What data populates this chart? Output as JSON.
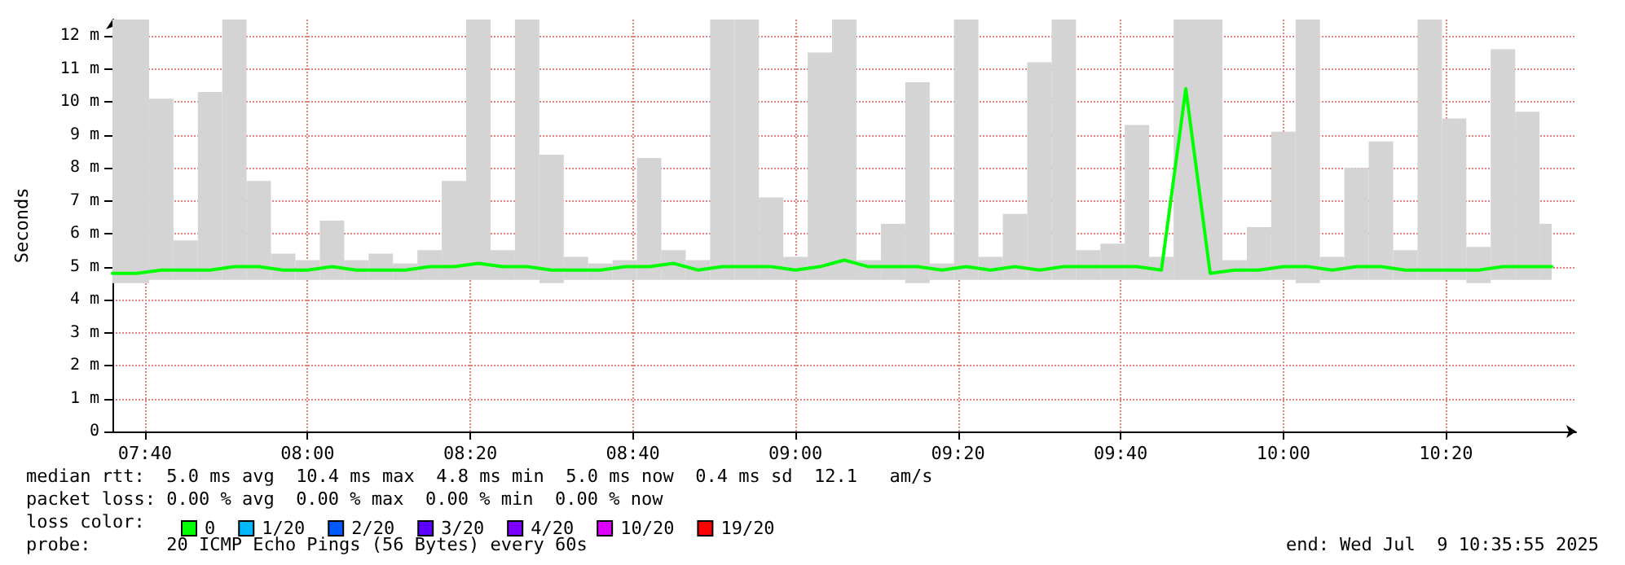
{
  "chart_data": {
    "type": "line",
    "ylabel": "Seconds",
    "x": [
      "2025-07-09T07:36",
      "2025-07-09T07:39",
      "2025-07-09T07:42",
      "2025-07-09T07:45",
      "2025-07-09T07:48",
      "2025-07-09T07:51",
      "2025-07-09T07:54",
      "2025-07-09T07:57",
      "2025-07-09T08:00",
      "2025-07-09T08:03",
      "2025-07-09T08:06",
      "2025-07-09T08:09",
      "2025-07-09T08:12",
      "2025-07-09T08:15",
      "2025-07-09T08:18",
      "2025-07-09T08:21",
      "2025-07-09T08:24",
      "2025-07-09T08:27",
      "2025-07-09T08:30",
      "2025-07-09T08:33",
      "2025-07-09T08:36",
      "2025-07-09T08:39",
      "2025-07-09T08:42",
      "2025-07-09T08:45",
      "2025-07-09T08:48",
      "2025-07-09T08:51",
      "2025-07-09T08:54",
      "2025-07-09T08:57",
      "2025-07-09T09:00",
      "2025-07-09T09:03",
      "2025-07-09T09:06",
      "2025-07-09T09:09",
      "2025-07-09T09:12",
      "2025-07-09T09:15",
      "2025-07-09T09:18",
      "2025-07-09T09:21",
      "2025-07-09T09:24",
      "2025-07-09T09:27",
      "2025-07-09T09:30",
      "2025-07-09T09:33",
      "2025-07-09T09:36",
      "2025-07-09T09:39",
      "2025-07-09T09:42",
      "2025-07-09T09:45",
      "2025-07-09T09:48",
      "2025-07-09T09:51",
      "2025-07-09T09:54",
      "2025-07-09T09:57",
      "2025-07-09T10:00",
      "2025-07-09T10:03",
      "2025-07-09T10:06",
      "2025-07-09T10:09",
      "2025-07-09T10:12",
      "2025-07-09T10:15",
      "2025-07-09T10:18",
      "2025-07-09T10:21",
      "2025-07-09T10:24",
      "2025-07-09T10:27",
      "2025-07-09T10:30",
      "2025-07-09T10:33"
    ],
    "series": [
      {
        "name": "0",
        "color": "#00ff00",
        "values": [
          4.8,
          4.8,
          4.9,
          4.9,
          4.9,
          5.0,
          5.0,
          4.9,
          4.9,
          5.0,
          4.9,
          4.9,
          4.9,
          5.0,
          5.0,
          5.1,
          5.0,
          5.0,
          4.9,
          4.9,
          4.9,
          5.0,
          5.0,
          5.1,
          4.9,
          5.0,
          5.0,
          5.0,
          4.9,
          5.0,
          5.2,
          5.0,
          5.0,
          5.0,
          4.9,
          5.0,
          4.9,
          5.0,
          4.9,
          5.0,
          5.0,
          5.0,
          5.0,
          4.9,
          10.4,
          4.8,
          4.9,
          4.9,
          5.0,
          5.0,
          4.9,
          5.0,
          5.0,
          4.9,
          4.9,
          4.9,
          4.9,
          5.0,
          5.0,
          5.0
        ],
        "lower": [
          4.5,
          4.5,
          4.6,
          4.6,
          4.6,
          4.6,
          4.6,
          4.6,
          4.6,
          4.6,
          4.6,
          4.6,
          4.6,
          4.6,
          4.6,
          4.6,
          4.6,
          4.6,
          4.5,
          4.6,
          4.6,
          4.6,
          4.6,
          4.6,
          4.6,
          4.6,
          4.6,
          4.6,
          4.6,
          4.6,
          4.6,
          4.6,
          4.6,
          4.5,
          4.6,
          4.6,
          4.6,
          4.6,
          4.6,
          4.6,
          4.6,
          4.6,
          4.6,
          4.6,
          4.6,
          4.6,
          4.6,
          4.6,
          4.6,
          4.5,
          4.6,
          4.6,
          4.6,
          4.6,
          4.6,
          4.6,
          4.5,
          4.6,
          4.6,
          4.6
        ],
        "upper": [
          12.5,
          12.5,
          10.1,
          5.8,
          10.3,
          12.5,
          7.6,
          5.4,
          5.2,
          6.4,
          5.2,
          5.4,
          5.1,
          5.5,
          7.6,
          12.5,
          5.5,
          12.5,
          8.4,
          5.3,
          5.1,
          5.2,
          8.3,
          5.5,
          5.2,
          12.5,
          12.5,
          7.1,
          5.3,
          11.5,
          12.5,
          5.2,
          6.3,
          10.6,
          5.1,
          12.5,
          5.3,
          6.6,
          11.2,
          12.5,
          5.5,
          5.7,
          9.3,
          5.3,
          12.5,
          12.5,
          5.2,
          6.2,
          9.1,
          12.5,
          5.3,
          8.0,
          8.8,
          5.5,
          12.5,
          9.5,
          5.6,
          11.6,
          9.7,
          6.3
        ]
      },
      {
        "name": "1/20",
        "color": "#00b8ff",
        "values": [
          null,
          null,
          null,
          null,
          null,
          null,
          null,
          null,
          null,
          null,
          null,
          null,
          null,
          null,
          null,
          null,
          null,
          null,
          null,
          null,
          null,
          null,
          null,
          null,
          null,
          null,
          null,
          null,
          null,
          null,
          null,
          null,
          null,
          null,
          null,
          null,
          null,
          null,
          null,
          null,
          null,
          null,
          null,
          null,
          null,
          null,
          null,
          null,
          null,
          null,
          null,
          null,
          null,
          null,
          null,
          null,
          null,
          null,
          null,
          null
        ]
      },
      {
        "name": "2/20",
        "color": "#0059ff",
        "values": [
          null,
          null,
          null,
          null,
          null,
          null,
          null,
          null,
          null,
          null,
          null,
          null,
          null,
          null,
          null,
          null,
          null,
          null,
          null,
          null,
          null,
          null,
          null,
          null,
          null,
          null,
          null,
          null,
          null,
          null,
          null,
          null,
          null,
          null,
          null,
          null,
          null,
          null,
          null,
          null,
          null,
          null,
          null,
          null,
          null,
          null,
          null,
          null,
          null,
          null,
          null,
          null,
          null,
          null,
          null,
          null,
          null,
          null,
          null,
          null
        ]
      },
      {
        "name": "3/20",
        "color": "#5e00ff",
        "values": [
          null,
          null,
          null,
          null,
          null,
          null,
          null,
          null,
          null,
          null,
          null,
          null,
          null,
          null,
          null,
          null,
          null,
          null,
          null,
          null,
          null,
          null,
          null,
          null,
          null,
          null,
          null,
          null,
          null,
          null,
          null,
          null,
          null,
          null,
          null,
          null,
          null,
          null,
          null,
          null,
          null,
          null,
          null,
          null,
          null,
          null,
          null,
          null,
          null,
          null,
          null,
          null,
          null,
          null,
          null,
          null,
          null,
          null,
          null,
          null
        ]
      },
      {
        "name": "4/20",
        "color": "#7e00ff",
        "values": [
          null,
          null,
          null,
          null,
          null,
          null,
          null,
          null,
          null,
          null,
          null,
          null,
          null,
          null,
          null,
          null,
          null,
          null,
          null,
          null,
          null,
          null,
          null,
          null,
          null,
          null,
          null,
          null,
          null,
          null,
          null,
          null,
          null,
          null,
          null,
          null,
          null,
          null,
          null,
          null,
          null,
          null,
          null,
          null,
          null,
          null,
          null,
          null,
          null,
          null,
          null,
          null,
          null,
          null,
          null,
          null,
          null,
          null,
          null,
          null
        ]
      },
      {
        "name": "10/20",
        "color": "#dd00ff",
        "values": [
          null,
          null,
          null,
          null,
          null,
          null,
          null,
          null,
          null,
          null,
          null,
          null,
          null,
          null,
          null,
          null,
          null,
          null,
          null,
          null,
          null,
          null,
          null,
          null,
          null,
          null,
          null,
          null,
          null,
          null,
          null,
          null,
          null,
          null,
          null,
          null,
          null,
          null,
          null,
          null,
          null,
          null,
          null,
          null,
          null,
          null,
          null,
          null,
          null,
          null,
          null,
          null,
          null,
          null,
          null,
          null,
          null,
          null,
          null,
          null
        ]
      },
      {
        "name": "19/20",
        "color": "#ff0000",
        "values": [
          null,
          null,
          null,
          null,
          null,
          null,
          null,
          null,
          null,
          null,
          null,
          null,
          null,
          null,
          null,
          null,
          null,
          null,
          null,
          null,
          null,
          null,
          null,
          null,
          null,
          null,
          null,
          null,
          null,
          null,
          null,
          null,
          null,
          null,
          null,
          null,
          null,
          null,
          null,
          null,
          null,
          null,
          null,
          null,
          null,
          null,
          null,
          null,
          null,
          null,
          null,
          null,
          null,
          null,
          null,
          null,
          null,
          null,
          null,
          null
        ]
      }
    ],
    "xlim": [
      "2025-07-09T07:36",
      "2025-07-09T10:36"
    ],
    "xticks": [
      {
        "value": "2025-07-09T07:40",
        "label": "07:40"
      },
      {
        "value": "2025-07-09T08:00",
        "label": "08:00"
      },
      {
        "value": "2025-07-09T08:20",
        "label": "08:20"
      },
      {
        "value": "2025-07-09T08:40",
        "label": "08:40"
      },
      {
        "value": "2025-07-09T09:00",
        "label": "09:00"
      },
      {
        "value": "2025-07-09T09:20",
        "label": "09:20"
      },
      {
        "value": "2025-07-09T09:40",
        "label": "09:40"
      },
      {
        "value": "2025-07-09T10:00",
        "label": "10:00"
      },
      {
        "value": "2025-07-09T10:20",
        "label": "10:20"
      }
    ],
    "ylim": [
      0,
      12.5
    ],
    "yticks": [
      0,
      {
        "value": 1,
        "label": "1 m"
      },
      {
        "value": 2,
        "label": "2 m"
      },
      {
        "value": 3,
        "label": "3 m"
      },
      {
        "value": 4,
        "label": "4 m"
      },
      {
        "value": 5,
        "label": "5 m"
      },
      {
        "value": 6,
        "label": "6 m"
      },
      {
        "value": 7,
        "label": "7 m"
      },
      {
        "value": 8,
        "label": "8 m"
      },
      {
        "value": 9,
        "label": "9 m"
      },
      {
        "value": 10,
        "label": "10 m"
      },
      {
        "value": 11,
        "label": "11 m"
      },
      {
        "value": 12,
        "label": "12 m"
      }
    ],
    "grid": true,
    "legend": "bottom",
    "marker": "none",
    "line_style": "solid",
    "annotations": [
      "median rtt:  5.0 ms avg  10.4 ms max  4.8 ms min  5.0 ms now  0.4 ms sd  12.1   am/s",
      "packet loss: 0.00 % avg  0.00 % max  0.00 % min  0.00 % now",
      "loss color:",
      "probe:       20 ICMP Echo Pings (56 Bytes) every 60s",
      "end: Wed Jul  9 10:35:55 2025"
    ]
  }
}
